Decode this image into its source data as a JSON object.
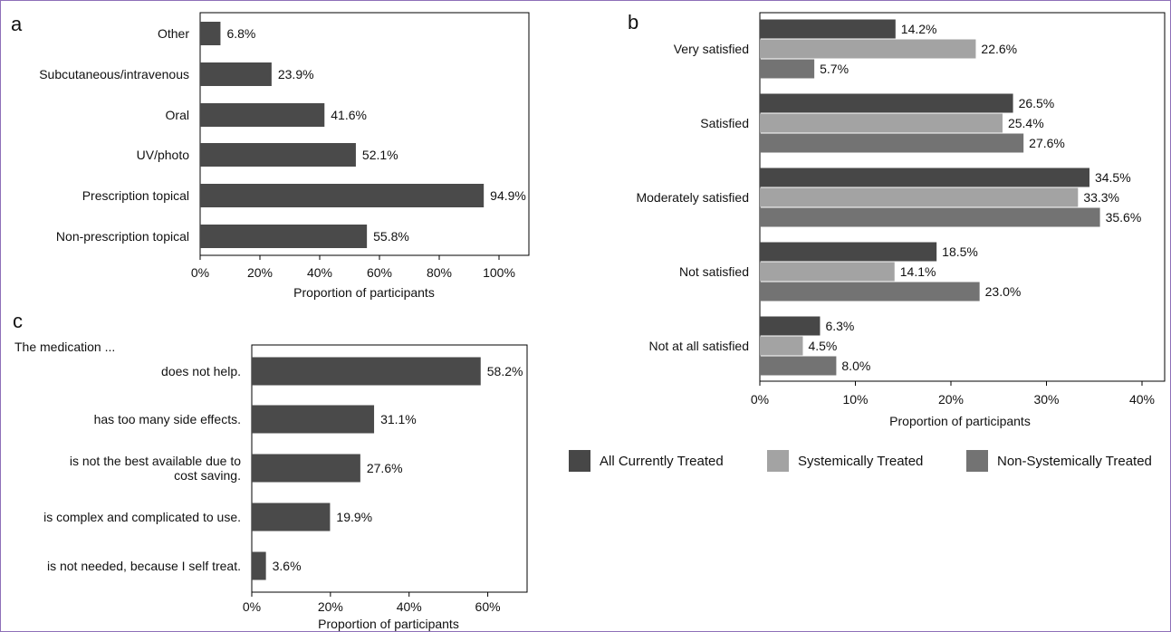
{
  "chart_data": [
    {
      "type": "bar",
      "panel_label": "a",
      "orientation": "horizontal",
      "categories": [
        "Other",
        "Subcutaneous/intravenous",
        "Oral",
        "UV/photo",
        "Prescription topical",
        "Non-prescription topical"
      ],
      "values": [
        6.8,
        23.9,
        41.6,
        52.1,
        94.9,
        55.8
      ],
      "value_labels": [
        "6.8%",
        "23.9%",
        "41.6%",
        "52.1%",
        "94.9%",
        "55.8%"
      ],
      "xlabel": "Proportion of participants",
      "xlim": [
        0,
        110
      ],
      "xticks": [
        "0%",
        "20%",
        "40%",
        "60%",
        "80%",
        "100%"
      ],
      "bar_color": "#4a4a4a",
      "grid": false
    },
    {
      "type": "bar",
      "panel_label": "b",
      "orientation": "horizontal",
      "categories": [
        "Very satisfied",
        "Satisfied",
        "Moderately satisfied",
        "Not satisfied",
        "Not at all satisfied"
      ],
      "series": [
        {
          "name": "All Currently Treated",
          "color": "#474747",
          "values": [
            14.2,
            26.5,
            34.5,
            18.5,
            6.3
          ],
          "value_labels": [
            "14.2%",
            "26.5%",
            "34.5%",
            "18.5%",
            "6.3%"
          ]
        },
        {
          "name": "Systemically Treated",
          "color": "#a3a3a3",
          "values": [
            22.6,
            25.4,
            33.3,
            14.1,
            4.5
          ],
          "value_labels": [
            "22.6%",
            "25.4%",
            "33.3%",
            "14.1%",
            "4.5%"
          ]
        },
        {
          "name": "Non-Systemically Treated",
          "color": "#737373",
          "values": [
            5.7,
            27.6,
            35.6,
            23.0,
            8.0
          ],
          "value_labels": [
            "5.7%",
            "27.6%",
            "35.6%",
            "23.0%",
            "8.0%"
          ]
        }
      ],
      "xlabel": "Proportion of participants",
      "xlim": [
        0,
        40
      ],
      "xticks": [
        "0%",
        "10%",
        "20%",
        "30%",
        "40%"
      ],
      "legend_position": "bottom",
      "grid": false
    },
    {
      "type": "bar",
      "panel_label": "c",
      "orientation": "horizontal",
      "annotation": "The medication ...",
      "categories": [
        "does not help.",
        "has too many side effects.",
        "is not the best available due to cost saving.",
        "is complex and complicated to use.",
        "is not needed, because I self treat."
      ],
      "category_lines": [
        [
          "does not help."
        ],
        [
          "has too many side effects."
        ],
        [
          "is not the best available due to",
          "cost saving."
        ],
        [
          "is complex and complicated to use."
        ],
        [
          "is not needed, because I self treat."
        ]
      ],
      "values": [
        58.2,
        31.1,
        27.6,
        19.9,
        3.6
      ],
      "value_labels": [
        "58.2%",
        "31.1%",
        "27.6%",
        "19.9%",
        "3.6%"
      ],
      "xlabel": "Proportion of participants",
      "xlim": [
        0,
        70
      ],
      "xticks": [
        "0%",
        "20%",
        "40%",
        "60%"
      ],
      "bar_color": "#4a4a4a",
      "grid": false
    }
  ]
}
